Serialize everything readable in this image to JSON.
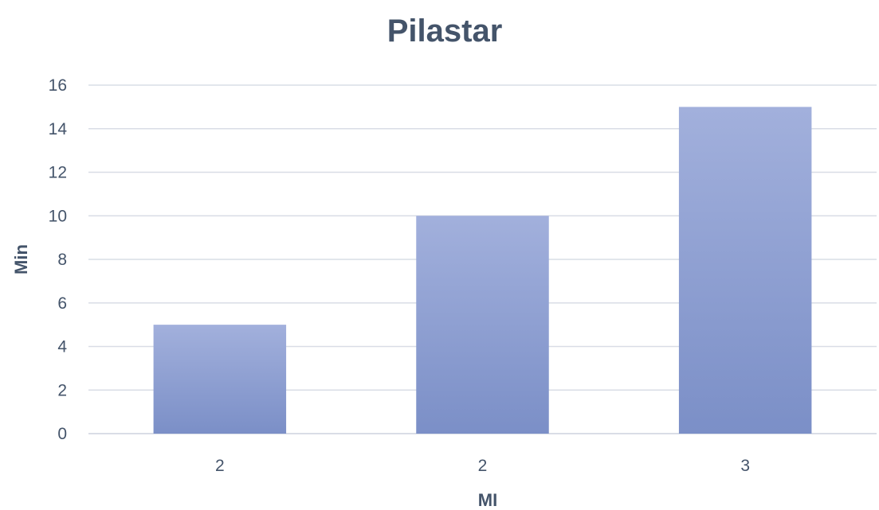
{
  "chart_data": {
    "type": "bar",
    "title": "Pilastar",
    "xlabel": "MI",
    "ylabel": "Min",
    "categories": [
      "2",
      "2",
      "3"
    ],
    "values": [
      5,
      10,
      15
    ],
    "ylim": [
      0,
      16
    ],
    "yticks": [
      "0",
      "2",
      "4",
      "6",
      "8",
      "10",
      "12",
      "14",
      "16"
    ],
    "grid": true,
    "legend": "none",
    "bar_color_top": "#a2b0dc",
    "bar_color_bottom": "#7b8fc7"
  }
}
